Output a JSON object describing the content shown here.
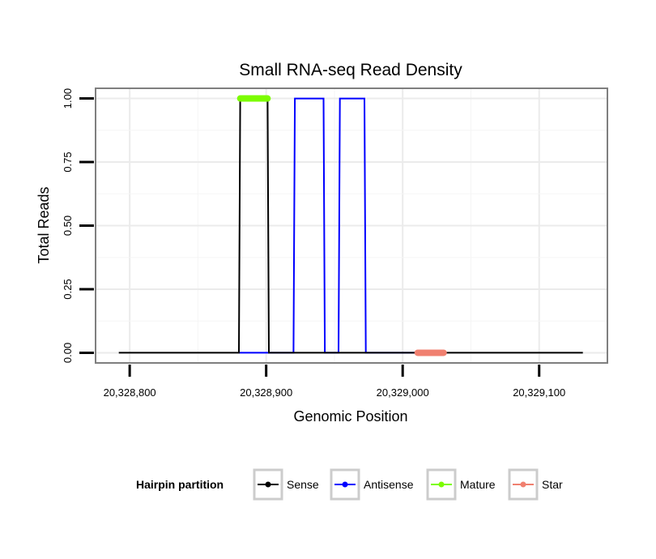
{
  "chart_data": {
    "type": "line",
    "title": "Small RNA-seq Read Density",
    "xlabel": "Genomic Position",
    "ylabel": "Total Reads",
    "xlim": [
      20328775,
      20329150
    ],
    "ylim": [
      -0.04,
      1.04
    ],
    "x_ticks": [
      {
        "value": 20328800,
        "label": "20,328,800"
      },
      {
        "value": 20328900,
        "label": "20,328,900"
      },
      {
        "value": 20329000,
        "label": "20,329,000"
      },
      {
        "value": 20329100,
        "label": "20,329,100"
      }
    ],
    "y_ticks": [
      {
        "value": 0.0,
        "label": "0.00"
      },
      {
        "value": 0.25,
        "label": "0.25"
      },
      {
        "value": 0.5,
        "label": "0.50"
      },
      {
        "value": 0.75,
        "label": "0.75"
      },
      {
        "value": 1.0,
        "label": "1.00"
      }
    ],
    "grid": true,
    "legend": {
      "title": "Hairpin partition",
      "position": "bottom",
      "entries": [
        {
          "name": "Sense",
          "color": "#000000"
        },
        {
          "name": "Antisense",
          "color": "#0000ff"
        },
        {
          "name": "Mature",
          "color": "#7cfc00"
        },
        {
          "name": "Star",
          "color": "#f08070"
        }
      ]
    },
    "series": [
      {
        "name": "Antisense",
        "color": "#0000ff",
        "kind": "line",
        "x": [
          20328880,
          20328920,
          20328921,
          20328942,
          20328943,
          20328953,
          20328954,
          20328972,
          20328973,
          20329020
        ],
        "y": [
          0,
          0,
          1,
          1,
          0,
          0,
          1,
          1,
          0,
          0
        ]
      },
      {
        "name": "Sense",
        "color": "#000000",
        "kind": "line",
        "x": [
          20328792,
          20328880,
          20328881,
          20328901,
          20328902,
          20329132
        ],
        "y": [
          0,
          0,
          1,
          1,
          0,
          0
        ]
      },
      {
        "name": "Mature",
        "color": "#7cfc00",
        "kind": "segment",
        "x": [
          20328881,
          20328901
        ],
        "y": [
          1,
          1
        ]
      },
      {
        "name": "Star",
        "color": "#f08070",
        "kind": "segment",
        "x": [
          20329011,
          20329030
        ],
        "y": [
          0,
          0
        ]
      }
    ]
  }
}
